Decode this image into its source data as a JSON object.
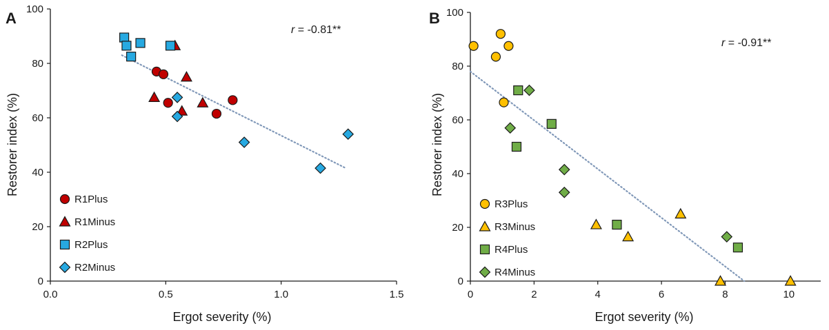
{
  "chart_data": [
    {
      "type": "scatter",
      "panel_label": "A",
      "xlabel": "Ergot severity (%)",
      "ylabel": "Restorer index (%)",
      "xlim": [
        0,
        1.5
      ],
      "ylim": [
        0,
        100
      ],
      "xticks": [
        "0.0",
        "0.5",
        "1.0",
        "1.5"
      ],
      "yticks": [
        "0",
        "20",
        "40",
        "60",
        "80",
        "100"
      ],
      "annotation": {
        "symbol": "r",
        "text": " = -0.81**"
      },
      "legend_position": "bottom-left",
      "trendline": {
        "style": "dotted",
        "color": "#8098b8",
        "from": [
          0.31,
          83
        ],
        "to": [
          1.28,
          41.5
        ]
      },
      "series": [
        {
          "name": "R1Plus",
          "marker": "circle",
          "color": "#c00000",
          "points": [
            [
              0.46,
              77
            ],
            [
              0.49,
              76
            ],
            [
              0.51,
              65.5
            ],
            [
              0.72,
              61.5
            ],
            [
              0.79,
              66.5
            ]
          ]
        },
        {
          "name": "R1Minus",
          "marker": "triangle",
          "color": "#c00000",
          "points": [
            [
              0.54,
              86.5
            ],
            [
              0.45,
              67.5
            ],
            [
              0.59,
              75
            ],
            [
              0.57,
              62.5
            ],
            [
              0.66,
              65.5
            ]
          ]
        },
        {
          "name": "R2Plus",
          "marker": "square",
          "color": "#27a9e1",
          "points": [
            [
              0.32,
              89.5
            ],
            [
              0.33,
              86.5
            ],
            [
              0.35,
              82.5
            ],
            [
              0.39,
              87.5
            ],
            [
              0.52,
              86.5
            ]
          ]
        },
        {
          "name": "R2Minus",
          "marker": "diamond",
          "color": "#27a9e1",
          "points": [
            [
              0.55,
              67.5
            ],
            [
              0.55,
              60.5
            ],
            [
              0.84,
              51
            ],
            [
              1.17,
              41.5
            ],
            [
              1.29,
              54
            ]
          ]
        }
      ]
    },
    {
      "type": "scatter",
      "panel_label": "B",
      "xlabel": "Ergot severity (%)",
      "ylabel": "Restorer index (%)",
      "xlim": [
        0,
        11
      ],
      "ylim": [
        0,
        100
      ],
      "xticks": [
        "0",
        "2",
        "4",
        "6",
        "8",
        "10"
      ],
      "yticks": [
        "0",
        "20",
        "40",
        "60",
        "80",
        "100"
      ],
      "annotation": {
        "symbol": "r",
        "text": " = -0.91**"
      },
      "legend_position": "bottom-left",
      "trendline": {
        "style": "dotted",
        "color": "#8098b8",
        "from": [
          0,
          78
        ],
        "to": [
          8.6,
          0
        ]
      },
      "series": [
        {
          "name": "R3Plus",
          "marker": "circle",
          "color": "#ffc000",
          "points": [
            [
              0.1,
              87.5
            ],
            [
              0.8,
              83.5
            ],
            [
              0.95,
              92
            ],
            [
              1.2,
              87.5
            ],
            [
              1.05,
              66.5
            ]
          ]
        },
        {
          "name": "R3Minus",
          "marker": "triangle",
          "color": "#ffc000",
          "points": [
            [
              3.95,
              21
            ],
            [
              4.95,
              16.5
            ],
            [
              6.6,
              25
            ],
            [
              7.85,
              0
            ],
            [
              10.05,
              0
            ]
          ]
        },
        {
          "name": "R4Plus",
          "marker": "square",
          "color": "#70ad47",
          "points": [
            [
              1.5,
              71
            ],
            [
              1.45,
              50
            ],
            [
              2.55,
              58.5
            ],
            [
              4.6,
              21
            ],
            [
              8.4,
              12.5
            ]
          ]
        },
        {
          "name": "R4Minus",
          "marker": "diamond",
          "color": "#70ad47",
          "points": [
            [
              1.85,
              71
            ],
            [
              1.25,
              57
            ],
            [
              2.95,
              41.5
            ],
            [
              2.95,
              33
            ],
            [
              8.05,
              16.5
            ]
          ]
        }
      ]
    }
  ]
}
